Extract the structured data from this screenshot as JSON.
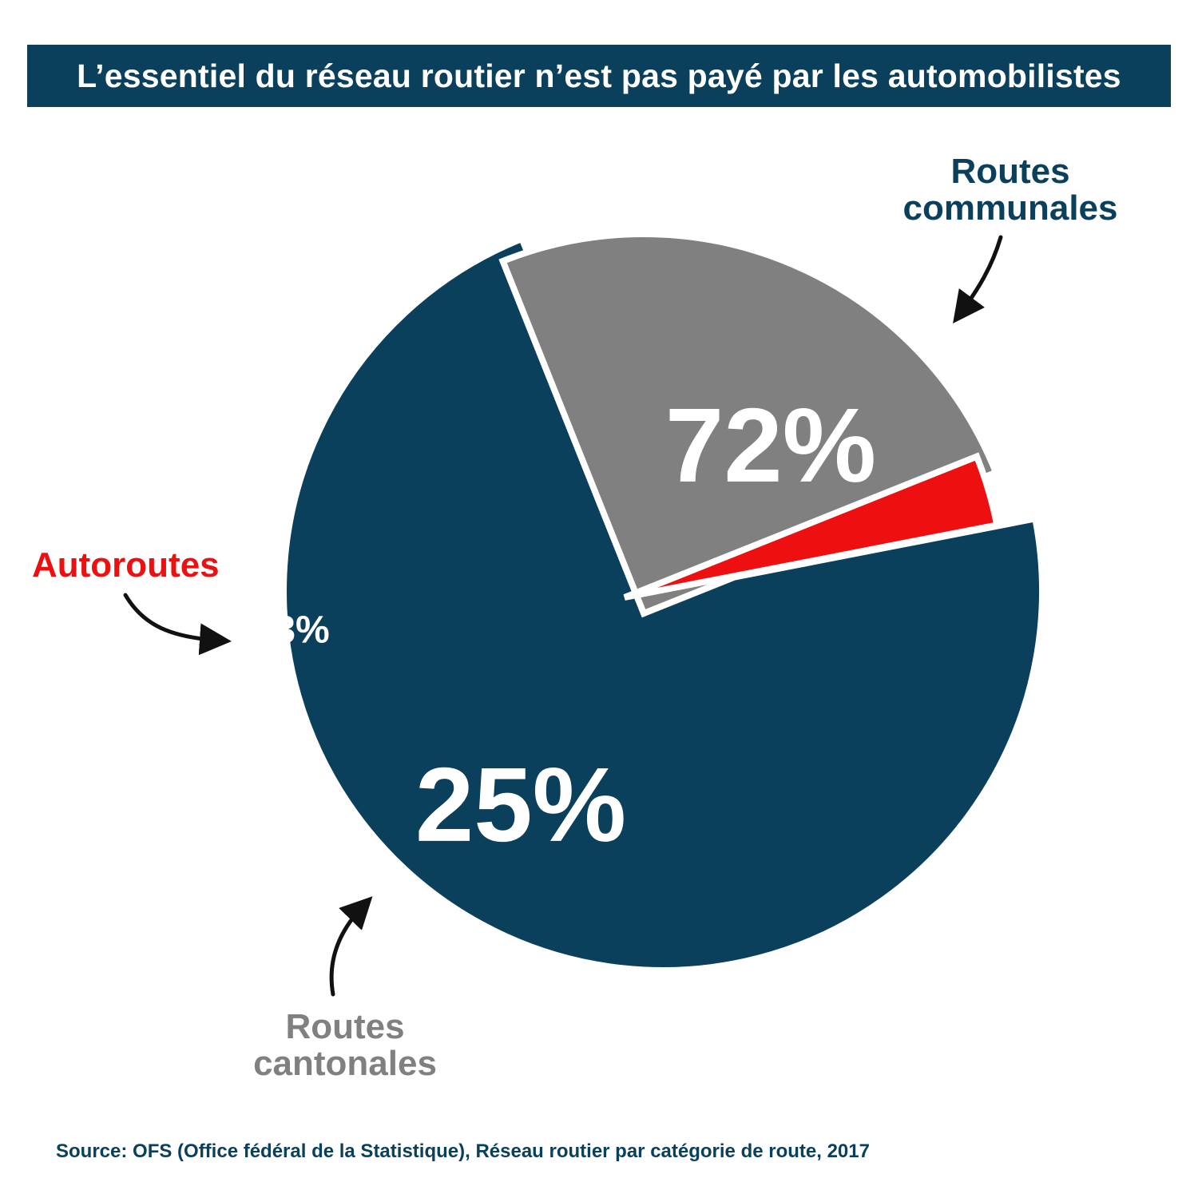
{
  "title": "L’essentiel du réseau routier n’est pas payé par les automobilistes",
  "source": "Source: OFS (Office fédéral de la Statistique), Réseau routier par catégorie de route, 2017",
  "chart_data": {
    "type": "pie",
    "title": "L’essentiel du réseau routier n’est pas payé par les automobilistes",
    "unit": "%",
    "slices": [
      {
        "name": "Routes communales",
        "label_lines": [
          "Routes",
          "communales"
        ],
        "value": 72,
        "value_label": "72%",
        "color": "#0b405c",
        "label_color": "#0b405c"
      },
      {
        "name": "Routes cantonales",
        "label_lines": [
          "Routes",
          "cantonales"
        ],
        "value": 25,
        "value_label": "25%",
        "color": "#808080",
        "label_color": "#808080"
      },
      {
        "name": "Autoroutes",
        "label_lines": [
          "Autoroutes"
        ],
        "value": 3,
        "value_label": "3%",
        "color": "#ee1010",
        "label_color": "#ee1010"
      }
    ],
    "legend": "none",
    "exploded": true
  }
}
